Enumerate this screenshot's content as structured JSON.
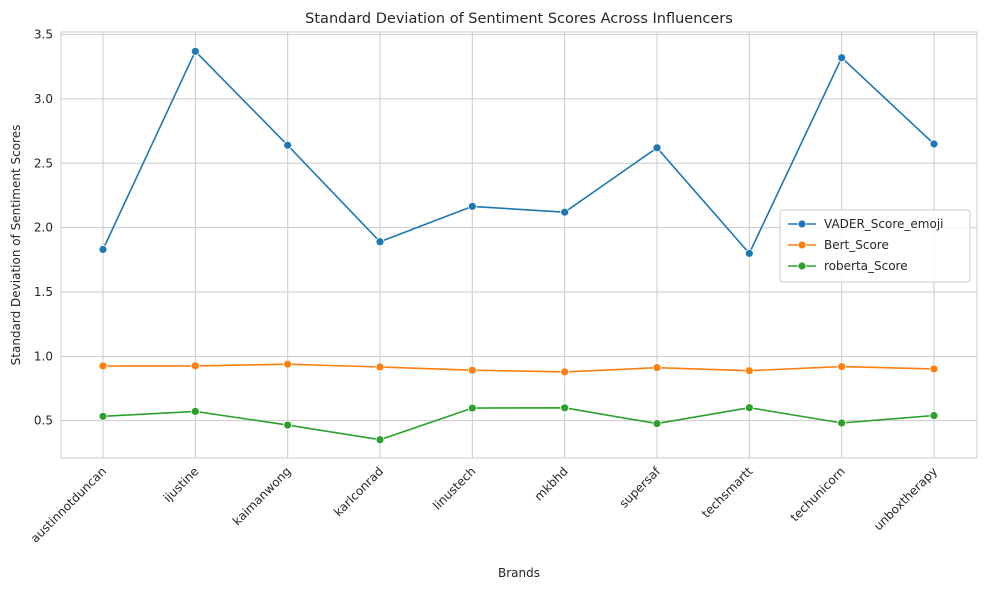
{
  "chart_data": {
    "type": "line",
    "title": "Standard Deviation of Sentiment Scores Across Influencers",
    "xlabel": "Brands",
    "ylabel": "Standard Deviation of Sentiment Scores",
    "categories": [
      "austinnotduncan",
      "ijustine",
      "kaimanwong",
      "karlconrad",
      "linustech",
      "mkbhd",
      "supersaf",
      "techsmartt",
      "techunicorn",
      "unboxtherapy"
    ],
    "yticks": [
      "0.5",
      "1.0",
      "1.5",
      "2.0",
      "2.5",
      "3.0",
      "3.5"
    ],
    "ylim": [
      0.21,
      3.52
    ],
    "grid": true,
    "legend_position": "center-right",
    "series": [
      {
        "name": "VADER_Score_emoji",
        "color": "#1f77b4",
        "values": [
          1.83,
          3.37,
          2.64,
          1.89,
          2.165,
          2.12,
          2.62,
          1.8,
          3.32,
          2.65
        ]
      },
      {
        "name": "Bert_Score",
        "color": "#ff7f0e",
        "values": [
          0.925,
          0.926,
          0.939,
          0.917,
          0.892,
          0.879,
          0.912,
          0.888,
          0.92,
          0.902
        ]
      },
      {
        "name": "roberta_Score",
        "color": "#2ca02c",
        "values": [
          0.534,
          0.572,
          0.466,
          0.352,
          0.598,
          0.6,
          0.477,
          0.601,
          0.482,
          0.54
        ]
      }
    ]
  }
}
